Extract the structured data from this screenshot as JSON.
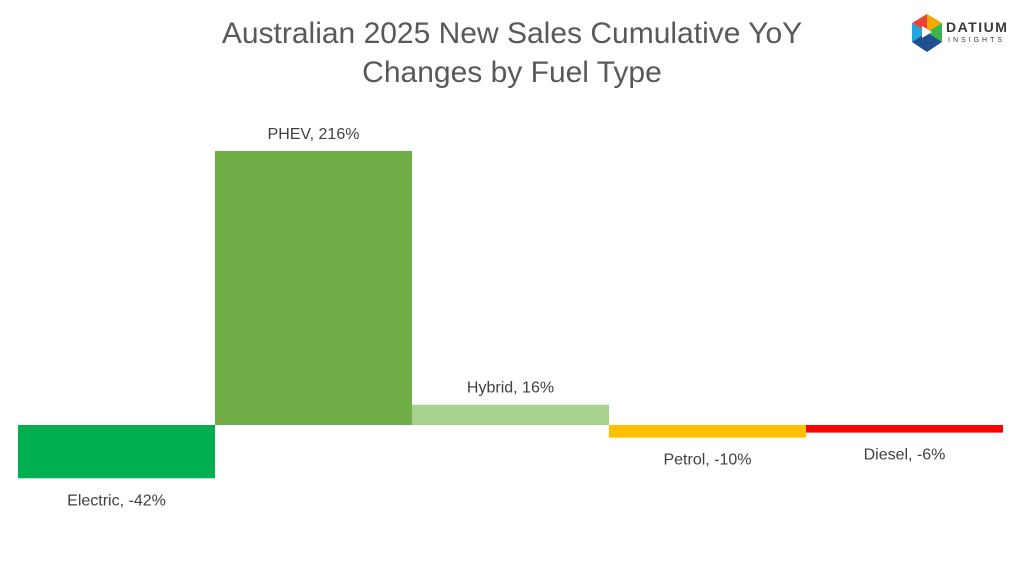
{
  "chart_data": {
    "type": "bar",
    "title_lines": [
      "Australian 2025 New Sales Cumulative YoY",
      "Changes by Fuel Type"
    ],
    "categories": [
      "Electric",
      "PHEV",
      "Hybrid",
      "Petrol",
      "Diesel"
    ],
    "values": [
      -42,
      216,
      16,
      -10,
      -6
    ],
    "data_labels": [
      "Electric, -42%",
      "PHEV, 216%",
      "Hybrid, 16%",
      "Petrol, -10%",
      "Diesel, -6%"
    ],
    "colors": [
      "#00b050",
      "#70ad47",
      "#a9d18e",
      "#ffc000",
      "#ff0000"
    ],
    "unit": "%",
    "xlabel": "",
    "ylabel": "",
    "grid": false,
    "legend": "none"
  },
  "logo": {
    "word": "DATIUM",
    "sub": "INSIGHTS",
    "colors": [
      "#f7a800",
      "#e8423b",
      "#21a6de",
      "#3bb54a",
      "#1d4f91"
    ]
  }
}
